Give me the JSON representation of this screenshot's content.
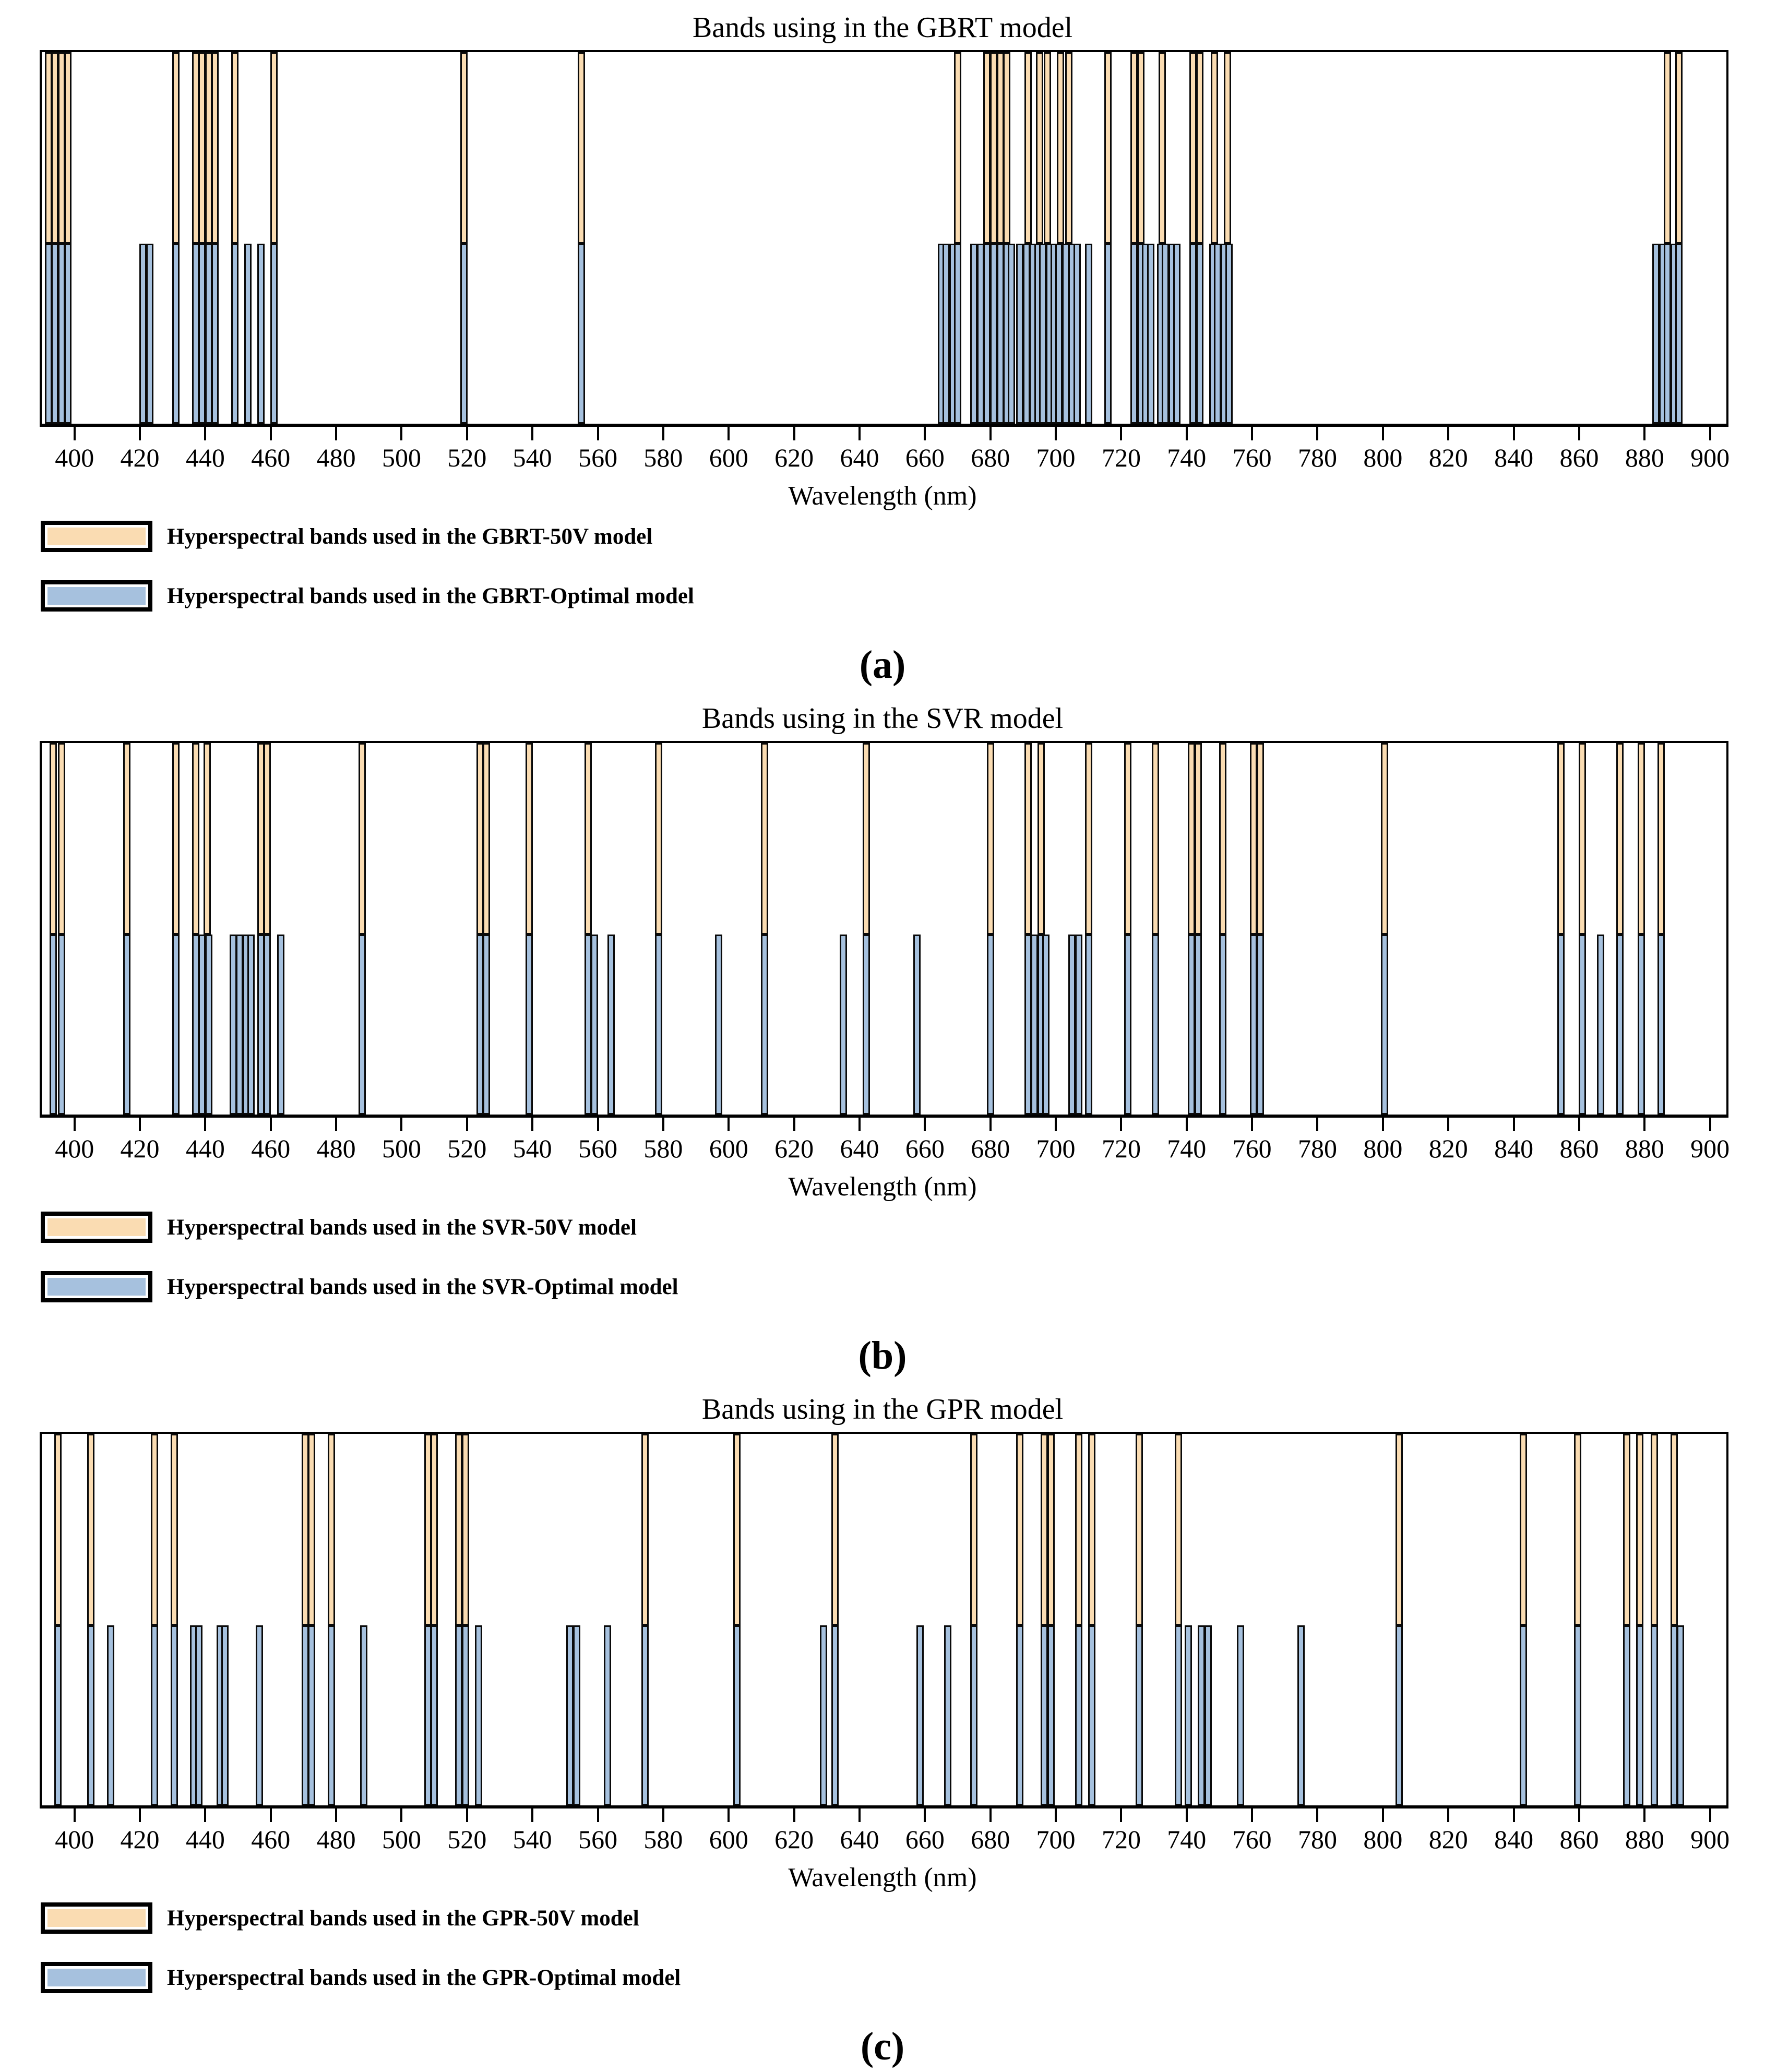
{
  "figure": {
    "xlabel": "Wavelength (nm)",
    "colors": {
      "band_50v_fill": "#fadcb2",
      "band_optimal_fill": "#a6c1de",
      "outline": "#0a0a0a"
    }
  },
  "chart_data": [
    {
      "type": "bar",
      "panel_label": "(a)",
      "title": "Bands using in the GBRT model",
      "xlabel": "Wavelength (nm)",
      "xlim": [
        390,
        905
      ],
      "xticks": [
        400,
        420,
        440,
        460,
        480,
        500,
        520,
        540,
        560,
        580,
        600,
        620,
        640,
        660,
        680,
        700,
        720,
        740,
        760,
        780,
        800,
        820,
        840,
        860,
        880,
        900
      ],
      "bar_width_nm": 2,
      "grid": false,
      "legend_position": "below-left",
      "series": [
        {
          "name": "Hyperspectral bands used in the GBRT-50V model",
          "color": "#fadcb2",
          "position": "top-half",
          "wavelengths_nm": [
            392,
            394,
            396,
            398,
            431,
            437,
            439,
            441,
            443,
            449,
            461,
            519,
            555,
            670,
            679,
            681,
            683,
            685,
            691.5,
            695,
            697.5,
            701.5,
            704,
            716,
            724,
            726,
            732.5,
            742,
            744,
            748.5,
            752.5,
            887,
            890.5
          ]
        },
        {
          "name": "Hyperspectral bands used in the GBRT-Optimal model",
          "color": "#a6c1de",
          "position": "bottom-half",
          "wavelengths_nm": [
            392,
            394,
            396,
            398,
            421,
            423,
            431,
            437,
            439,
            441,
            443,
            449,
            453,
            457,
            461,
            519,
            555,
            665,
            666.5,
            668.5,
            670,
            675,
            677,
            679,
            681,
            683,
            685,
            686.5,
            689,
            691,
            693,
            694.5,
            696,
            698,
            699.5,
            701,
            703,
            705,
            706.5,
            710,
            716,
            724,
            726,
            727.5,
            729,
            732,
            733.5,
            735.5,
            737,
            742,
            744,
            748,
            749.5,
            751.5,
            753,
            883.5,
            885.5,
            887,
            889,
            890.5
          ]
        }
      ]
    },
    {
      "type": "bar",
      "panel_label": "(b)",
      "title": "Bands using in the SVR model",
      "xlabel": "Wavelength (nm)",
      "xlim": [
        390,
        905
      ],
      "xticks": [
        400,
        420,
        440,
        460,
        480,
        500,
        520,
        540,
        560,
        580,
        600,
        620,
        640,
        660,
        680,
        700,
        720,
        740,
        760,
        780,
        800,
        820,
        840,
        860,
        880,
        900
      ],
      "bar_width_nm": 2,
      "grid": false,
      "legend_position": "below-left",
      "series": [
        {
          "name": "Hyperspectral bands used in the SVR-50V model",
          "color": "#fadcb2",
          "position": "top-half",
          "wavelengths_nm": [
            393.5,
            396,
            416,
            431,
            437,
            440.5,
            457,
            459,
            488,
            524,
            526,
            539,
            557,
            578.5,
            611,
            642,
            680,
            691.5,
            695.5,
            710,
            722,
            730.5,
            741.5,
            743.5,
            751,
            760.5,
            762.5,
            800.5,
            854.5,
            861,
            872.5,
            879,
            885
          ]
        },
        {
          "name": "Hyperspectral bands used in the SVR-Optimal model",
          "color": "#a6c1de",
          "position": "bottom-half",
          "wavelengths_nm": [
            393.5,
            396,
            416,
            431,
            437,
            439,
            441,
            448.5,
            450.5,
            452.5,
            454,
            457,
            459,
            463,
            488,
            524,
            526,
            539,
            557,
            559,
            564,
            578.5,
            597,
            611,
            635,
            642,
            657.5,
            680,
            691.5,
            693.5,
            695.5,
            697,
            705,
            707,
            710,
            722,
            730.5,
            741.5,
            743.5,
            751,
            760.5,
            762.5,
            800.5,
            854.5,
            861,
            866.5,
            872.5,
            879,
            885
          ]
        }
      ]
    },
    {
      "type": "bar",
      "panel_label": "(c)",
      "title": "Bands using in the GPR model",
      "xlabel": "Wavelength (nm)",
      "xlim": [
        390,
        905
      ],
      "xticks": [
        400,
        420,
        440,
        460,
        480,
        500,
        520,
        540,
        560,
        580,
        600,
        620,
        640,
        660,
        680,
        700,
        720,
        740,
        760,
        780,
        800,
        820,
        840,
        860,
        880,
        900
      ],
      "bar_width_nm": 2,
      "grid": false,
      "legend_position": "below-left",
      "series": [
        {
          "name": "Hyperspectral bands used in the GPR-50V model",
          "color": "#fadcb2",
          "position": "top-half",
          "wavelengths_nm": [
            395,
            405,
            424.5,
            430.5,
            470.5,
            472.5,
            478.5,
            508,
            510,
            517.5,
            519.5,
            574.5,
            602.5,
            632.5,
            675,
            689,
            696.5,
            698.5,
            707,
            711,
            725.5,
            737.5,
            805,
            843,
            859.5,
            874.5,
            878.5,
            883,
            889
          ]
        },
        {
          "name": "Hyperspectral bands used in the GPR-Optimal model",
          "color": "#a6c1de",
          "position": "bottom-half",
          "wavelengths_nm": [
            395,
            405,
            411,
            424.5,
            430.5,
            436.5,
            438,
            444.5,
            446,
            456.5,
            470.5,
            472.5,
            478.5,
            488.5,
            508,
            510,
            517.5,
            519.5,
            523.5,
            551.5,
            553.5,
            563,
            574.5,
            602.5,
            629,
            632.5,
            658.5,
            667,
            675,
            689,
            696.5,
            698.5,
            707,
            711,
            725.5,
            737.5,
            740.5,
            744.5,
            746.5,
            756.5,
            775,
            805,
            843,
            859.5,
            874.5,
            878.5,
            883,
            889,
            891
          ]
        }
      ]
    }
  ]
}
